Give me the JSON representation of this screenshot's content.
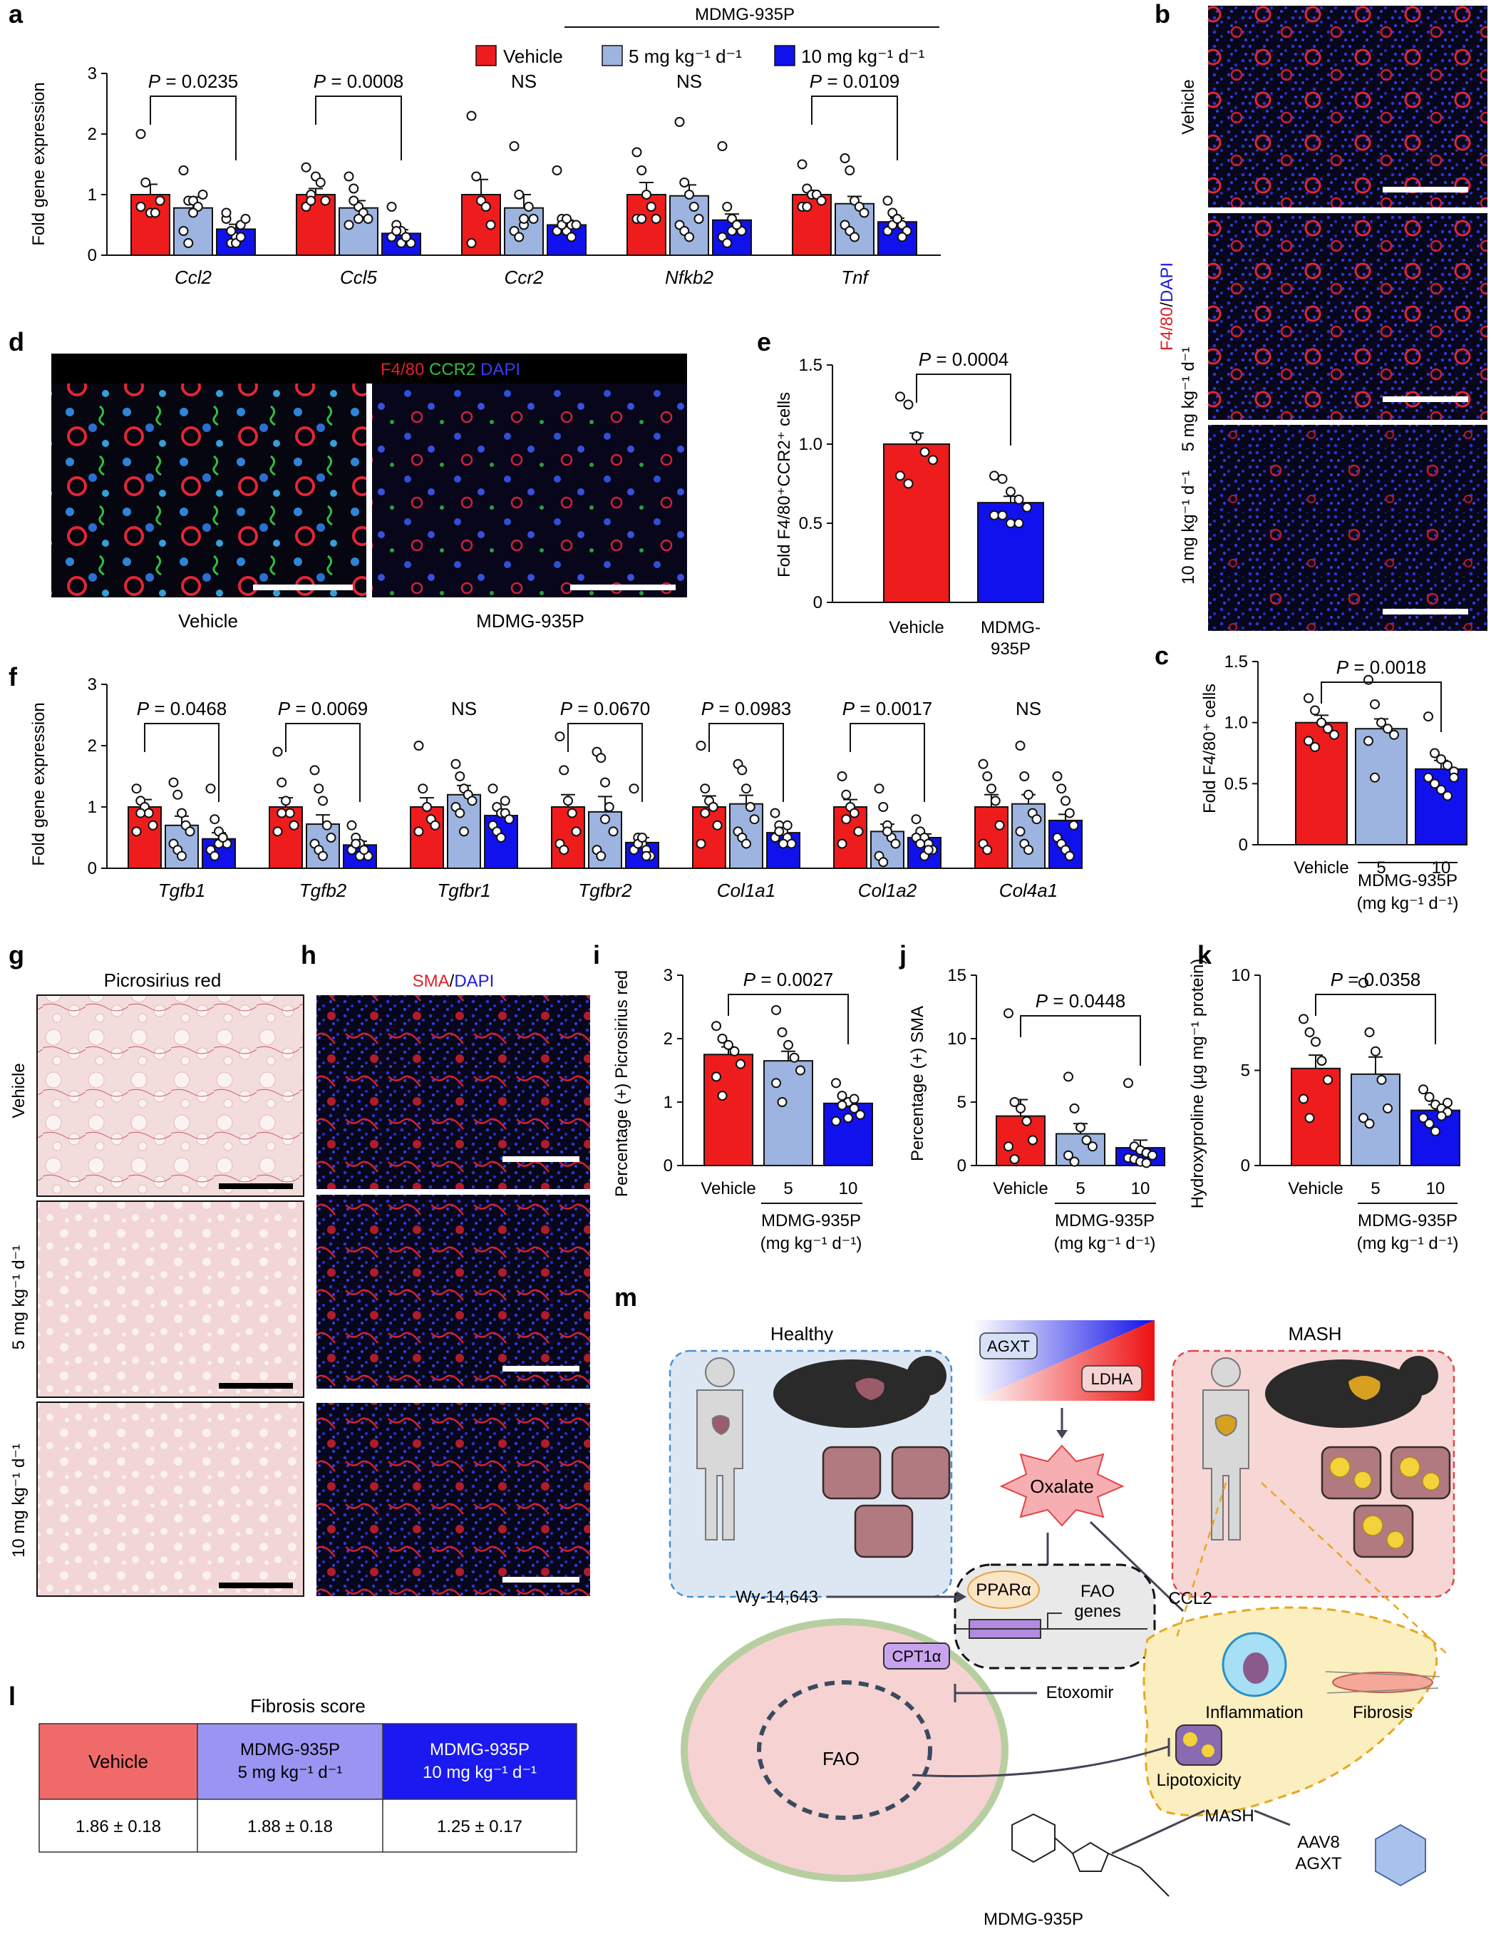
{
  "colors": {
    "vehicle": "#ee1c1c",
    "dose5": "#9db4e0",
    "dose10": "#1111ee",
    "table_vehicle": "#f06a6a",
    "table_5": "#9a94f2",
    "table_10": "#1a1af0"
  },
  "panel_letters": {
    "a": "a",
    "b": "b",
    "c": "c",
    "d": "d",
    "e": "e",
    "f": "f",
    "g": "g",
    "h": "h",
    "i": "i",
    "j": "j",
    "k": "k",
    "l": "l",
    "m": "m"
  },
  "legend": {
    "drug": "MDMG-935P",
    "vehicle": "Vehicle",
    "dose5": "5 mg kg⁻¹ d⁻¹",
    "dose10": "10 mg kg⁻¹ d⁻¹"
  },
  "panel_a": {
    "ylabel": "Fold gene expression",
    "yticks": [
      "0",
      "1",
      "2",
      "3"
    ],
    "genes": [
      "Ccl2",
      "Ccl5",
      "Ccr2",
      "Nfkb2",
      "Tnf"
    ],
    "stats": [
      "P = 0.0235",
      "P = 0.0008",
      "NS",
      "NS",
      "P = 0.0109"
    ]
  },
  "panel_b": {
    "row_labels": [
      "Vehicle",
      "5 mg kg⁻¹ d⁻¹",
      "10 mg kg⁻¹ d⁻¹"
    ],
    "stain_red": "F4/80",
    "stain_sep": "/",
    "stain_blue": "DAPI"
  },
  "panel_c": {
    "ylabel": "Fold F4/80⁺ cells",
    "yticks": [
      "0",
      "0.5",
      "1.0",
      "1.5"
    ],
    "stat": "P = 0.0018",
    "xticks": [
      "Vehicle",
      "5",
      "10"
    ],
    "drug": "MDMG-935P",
    "unit": "(mg kg⁻¹ d⁻¹)"
  },
  "panel_d": {
    "stain_red": "F4/80",
    "stain_green": "CCR2",
    "stain_blue": "DAPI",
    "labels": [
      "Vehicle",
      "MDMG-935P"
    ]
  },
  "panel_e": {
    "ylabel": "Fold F4/80⁺CCR2⁺ cells",
    "yticks": [
      "0",
      "0.5",
      "1.0",
      "1.5"
    ],
    "stat": "P = 0.0004",
    "xticks": [
      "Vehicle",
      "MDMG-",
      "935P"
    ]
  },
  "panel_f": {
    "ylabel": "Fold gene expression",
    "yticks": [
      "0",
      "1",
      "2",
      "3"
    ],
    "genes": [
      "Tgfb1",
      "Tgfb2",
      "Tgfbr1",
      "Tgfbr2",
      "Col1a1",
      "Col1a2",
      "Col4a1"
    ],
    "stats": [
      "P = 0.0468",
      "P = 0.0069",
      "NS",
      "P = 0.0670",
      "P = 0.0983",
      "P = 0.0017",
      "NS"
    ]
  },
  "panel_g": {
    "title": "Picrosirius red",
    "row_labels": [
      "Vehicle",
      "5 mg kg⁻¹ d⁻¹",
      "10 mg kg⁻¹ d⁻¹"
    ]
  },
  "panel_h": {
    "stain_red": "SMA",
    "stain_sep": "/",
    "stain_blue": "DAPI"
  },
  "panel_i": {
    "ylabel": "Percentage (+) Picrosirius red",
    "yticks": [
      "0",
      "1",
      "2",
      "3"
    ],
    "stat": "P = 0.0027",
    "xticks": [
      "Vehicle",
      "5",
      "10"
    ],
    "drug": "MDMG-935P",
    "unit": "(mg kg⁻¹ d⁻¹)"
  },
  "panel_j": {
    "ylabel": "Percentage (+) SMA",
    "yticks": [
      "0",
      "5",
      "10",
      "15"
    ],
    "stat": "P = 0.0448",
    "xticks": [
      "Vehicle",
      "5",
      "10"
    ],
    "drug": "MDMG-935P",
    "unit": "(mg kg⁻¹ d⁻¹)"
  },
  "panel_k": {
    "ylabel": "Hydroxyproline (µg mg⁻¹ protein)",
    "yticks": [
      "0",
      "5",
      "10"
    ],
    "stat": "P = 0.0358",
    "xticks": [
      "Vehicle",
      "5",
      "10"
    ],
    "drug": "MDMG-935P",
    "unit": "(mg kg⁻¹ d⁻¹)"
  },
  "panel_l": {
    "title": "Fibrosis score",
    "headers": [
      "Vehicle",
      "MDMG-935P\n5 mg kg⁻¹ d⁻¹",
      "MDMG-935P\n10 mg kg⁻¹ d⁻¹"
    ],
    "values": [
      "1.86 ± 0.18",
      "1.88 ± 0.18",
      "1.25 ± 0.17"
    ]
  },
  "panel_m": {
    "healthy": "Healthy",
    "mash": "MASH",
    "agxt": "AGXT",
    "ldha": "LDHA",
    "oxalate": "Oxalate",
    "wy": "Wy-14,643",
    "ppar": "PPARα",
    "fao_genes": "FAO genes",
    "ccl2": "CCL2",
    "cpt1a": "CPT1α",
    "etoxomir": "Etoxomir",
    "fao": "FAO",
    "inflammation": "Inflammation",
    "fibrosis": "Fibrosis",
    "lipotoxicity": "Lipotoxicity",
    "mash_center": "MASH",
    "aav8": "AAV8",
    "aav_agxt": "AGXT",
    "drug": "MDMG-935P"
  },
  "chart_data": [
    {
      "id": "a",
      "type": "bar",
      "categories": [
        "Ccl2",
        "Ccl5",
        "Ccr2",
        "Nfkb2",
        "Tnf"
      ],
      "series": [
        {
          "name": "Vehicle",
          "values": [
            1.0,
            1.0,
            1.0,
            1.0,
            1.0
          ]
        },
        {
          "name": "5 mg kg⁻¹ d⁻¹",
          "values": [
            0.78,
            0.78,
            0.78,
            0.98,
            0.85
          ]
        },
        {
          "name": "10 mg kg⁻¹ d⁻¹",
          "values": [
            0.43,
            0.36,
            0.5,
            0.58,
            0.55
          ]
        }
      ],
      "err": [
        [
          0.17,
          0.1,
          0.25,
          0.2,
          0.07
        ],
        [
          0.18,
          0.12,
          0.22,
          0.18,
          0.12
        ],
        [
          0.08,
          0.06,
          0.08,
          0.1,
          0.06
        ]
      ],
      "points": [
        [
          [
            2.0,
            1.2,
            0.7,
            0.7,
            0.9,
            0.8
          ],
          [
            1.4,
            0.9,
            0.9,
            0.8,
            1.0,
            0.4,
            0.2,
            0.7
          ],
          [
            0.6,
            0.2,
            0.3,
            0.5,
            0.6,
            0.7,
            0.4,
            0.2,
            0.3
          ]
        ],
        [
          [
            1.45,
            1.0,
            1.3,
            1.2,
            0.9,
            0.8,
            0.9
          ],
          [
            1.3,
            1.1,
            0.8,
            0.7,
            0.6,
            0.5,
            0.9,
            0.6
          ],
          [
            0.8,
            0.5,
            0.4,
            0.3,
            0.2,
            0.3,
            0.4,
            0.2,
            0.3
          ]
        ],
        [
          [
            2.3,
            1.3,
            0.9,
            0.8,
            0.5,
            0.2
          ],
          [
            1.8,
            1.0,
            0.5,
            0.8,
            0.6,
            0.4,
            0.3,
            0.6
          ],
          [
            1.4,
            0.6,
            0.4,
            0.5,
            0.5,
            0.4,
            0.5,
            0.6,
            0.3
          ]
        ],
        [
          [
            1.7,
            1.4,
            1.0,
            0.8,
            0.6,
            0.6,
            0.6
          ],
          [
            2.2,
            1.2,
            1.0,
            0.8,
            0.6,
            0.5,
            0.4,
            0.3
          ],
          [
            1.8,
            0.8,
            0.6,
            0.5,
            0.4,
            0.3,
            0.2,
            0.4,
            0.5
          ]
        ],
        [
          [
            1.5,
            1.1,
            1.0,
            1.0,
            0.9,
            0.8,
            0.8
          ],
          [
            1.6,
            1.4,
            0.9,
            0.8,
            0.7,
            0.5,
            0.4,
            0.3
          ],
          [
            0.9,
            0.7,
            0.6,
            0.5,
            0.4,
            0.4,
            0.5,
            0.6,
            0.3
          ]
        ]
      ],
      "ylim": [
        0,
        3
      ],
      "stat_pairs": [
        [
          0,
          2
        ],
        [
          0,
          2
        ],
        null,
        null,
        [
          0,
          2
        ]
      ]
    },
    {
      "id": "c",
      "type": "bar",
      "categories": [
        "Vehicle",
        "5",
        "10"
      ],
      "values": [
        1.0,
        0.95,
        0.62
      ],
      "err": [
        0.06,
        0.08,
        0.07
      ],
      "points": [
        [
          1.2,
          1.1,
          1.0,
          0.95,
          0.9,
          0.85,
          0.8
        ],
        [
          1.35,
          1.15,
          1.0,
          0.95,
          0.9,
          0.85,
          0.55
        ],
        [
          1.05,
          0.75,
          0.7,
          0.65,
          0.6,
          0.55,
          0.5,
          0.45,
          0.4,
          0.55
        ]
      ],
      "ylim": [
        0,
        1.5
      ],
      "stat_pairs": [
        [
          0,
          2
        ]
      ]
    },
    {
      "id": "e",
      "type": "bar",
      "categories": [
        "Vehicle",
        "MDMG-935P"
      ],
      "values": [
        1.0,
        0.63
      ],
      "err": [
        0.07,
        0.04
      ],
      "points": [
        [
          1.3,
          1.25,
          1.05,
          0.95,
          0.9,
          0.8,
          0.75
        ],
        [
          0.8,
          0.78,
          0.7,
          0.65,
          0.6,
          0.55,
          0.55,
          0.5,
          0.5
        ]
      ],
      "ylim": [
        0,
        1.5
      ],
      "stat_pairs": [
        [
          0,
          1
        ]
      ]
    },
    {
      "id": "f",
      "type": "bar",
      "categories": [
        "Tgfb1",
        "Tgfb2",
        "Tgfbr1",
        "Tgfbr2",
        "Col1a1",
        "Col1a2",
        "Col4a1"
      ],
      "series": [
        {
          "name": "Vehicle",
          "values": [
            1.0,
            1.0,
            1.0,
            1.0,
            1.0,
            1.0,
            1.0
          ]
        },
        {
          "name": "5 mg kg⁻¹ d⁻¹",
          "values": [
            0.7,
            0.72,
            1.2,
            0.92,
            1.05,
            0.6,
            1.05
          ]
        },
        {
          "name": "10 mg kg⁻¹ d⁻¹",
          "values": [
            0.48,
            0.38,
            0.86,
            0.42,
            0.58,
            0.5,
            0.78
          ]
        }
      ],
      "err": [
        [
          0.12,
          0.15,
          0.15,
          0.2,
          0.18,
          0.12,
          0.2
        ],
        [
          0.15,
          0.15,
          0.15,
          0.25,
          0.14,
          0.12,
          0.15
        ],
        [
          0.1,
          0.06,
          0.1,
          0.08,
          0.08,
          0.06,
          0.1
        ]
      ],
      "points": [
        [
          [
            1.3,
            1.1,
            1.0,
            0.9,
            0.7,
            0.6,
            0.9
          ],
          [
            1.4,
            1.2,
            0.9,
            0.7,
            0.6,
            0.4,
            0.3,
            0.2
          ],
          [
            1.3,
            0.8,
            0.6,
            0.5,
            0.4,
            0.3,
            0.2,
            0.4,
            0.5
          ]
        ],
        [
          [
            1.9,
            1.4,
            1.1,
            0.9,
            0.7,
            0.6,
            0.9
          ],
          [
            1.6,
            1.3,
            1.1,
            0.7,
            0.5,
            0.4,
            0.3,
            0.2
          ],
          [
            0.7,
            0.5,
            0.4,
            0.3,
            0.2,
            0.3,
            0.4,
            0.2,
            0.3
          ]
        ],
        [
          [
            2.0,
            1.3,
            1.0,
            0.8,
            0.7,
            0.6
          ],
          [
            1.7,
            1.5,
            1.3,
            1.2,
            1.1,
            1.0,
            0.9,
            0.6
          ],
          [
            1.3,
            1.0,
            0.9,
            0.9,
            0.8,
            0.7,
            0.6,
            0.5,
            1.1
          ]
        ],
        [
          [
            2.15,
            1.6,
            1.1,
            0.9,
            0.6,
            0.4,
            0.3
          ],
          [
            1.9,
            1.8,
            1.4,
            1.0,
            0.6,
            0.3,
            0.2,
            0.8
          ],
          [
            1.3,
            0.5,
            0.4,
            0.3,
            0.2,
            0.3,
            0.4,
            0.5,
            0.2
          ]
        ],
        [
          [
            2.0,
            1.3,
            1.1,
            1.0,
            0.7,
            0.4,
            0.9
          ],
          [
            1.7,
            1.6,
            1.3,
            1.0,
            0.8,
            0.6,
            0.5,
            0.4
          ],
          [
            0.9,
            0.7,
            0.6,
            0.5,
            0.4,
            0.5,
            0.6,
            0.4,
            0.7
          ]
        ],
        [
          [
            1.5,
            1.2,
            1.0,
            0.9,
            0.6,
            0.4,
            0.8
          ],
          [
            1.3,
            1.0,
            0.7,
            0.5,
            0.4,
            0.2,
            0.1,
            0.6
          ],
          [
            0.8,
            0.6,
            0.5,
            0.4,
            0.3,
            0.5,
            0.4,
            0.2,
            0.3
          ]
        ],
        [
          [
            1.7,
            1.5,
            1.3,
            1.1,
            0.7,
            0.4,
            0.3
          ],
          [
            2.0,
            1.5,
            1.2,
            0.9,
            0.8,
            0.6,
            0.4,
            0.3
          ],
          [
            1.5,
            1.3,
            1.1,
            0.9,
            0.7,
            0.5,
            0.4,
            0.3,
            0.2
          ]
        ]
      ],
      "ylim": [
        0,
        3
      ],
      "stat_pairs": [
        [
          0,
          2
        ],
        [
          0,
          2
        ],
        null,
        [
          0,
          2
        ],
        [
          0,
          2
        ],
        [
          0,
          2
        ],
        null
      ]
    },
    {
      "id": "i",
      "type": "bar",
      "categories": [
        "Vehicle",
        "5",
        "10"
      ],
      "values": [
        1.75,
        1.65,
        0.98
      ],
      "err": [
        0.12,
        0.15,
        0.08
      ],
      "points": [
        [
          2.2,
          2.0,
          1.9,
          1.8,
          1.6,
          1.4,
          1.1
        ],
        [
          2.45,
          2.1,
          1.9,
          1.7,
          1.5,
          1.3,
          1.0
        ],
        [
          1.3,
          1.1,
          1.0,
          0.9,
          0.8,
          0.7,
          0.95,
          0.75,
          1.05
        ]
      ],
      "ylim": [
        0,
        3
      ],
      "stat_pairs": [
        [
          0,
          2
        ]
      ]
    },
    {
      "id": "j",
      "type": "bar",
      "categories": [
        "Vehicle",
        "5",
        "10"
      ],
      "values": [
        3.9,
        2.5,
        1.4
      ],
      "err": [
        1.3,
        0.8,
        0.6
      ],
      "points": [
        [
          12.0,
          5.0,
          4.5,
          3.5,
          2.0,
          1.5,
          0.5
        ],
        [
          7.0,
          4.5,
          3.0,
          2.0,
          1.5,
          0.8,
          0.3
        ],
        [
          6.5,
          1.5,
          1.2,
          1.0,
          0.8,
          0.6,
          0.5,
          0.3,
          0.2
        ]
      ],
      "ylim": [
        0,
        15
      ],
      "stat_pairs": [
        [
          0,
          2
        ]
      ]
    },
    {
      "id": "k",
      "type": "bar",
      "categories": [
        "Vehicle",
        "5",
        "10"
      ],
      "values": [
        5.1,
        4.8,
        2.9
      ],
      "err": [
        0.7,
        0.9,
        0.3
      ],
      "points": [
        [
          7.7,
          7.0,
          6.5,
          5.5,
          4.5,
          3.5,
          2.5
        ],
        [
          9.6,
          7.0,
          6.0,
          4.5,
          3.0,
          2.5,
          2.2
        ],
        [
          4.0,
          3.6,
          3.2,
          3.0,
          2.8,
          2.5,
          2.2,
          1.8,
          2.6,
          3.3
        ]
      ],
      "ylim": [
        0,
        10
      ],
      "stat_pairs": [
        [
          0,
          2
        ]
      ]
    }
  ]
}
